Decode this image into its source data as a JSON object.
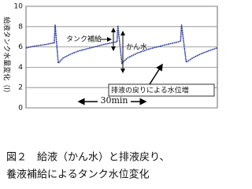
{
  "chart_data": {
    "type": "line",
    "y_label": "給液タンク水量変化（l）",
    "x": [
      0,
      4.2,
      7.8,
      11.3,
      12.7,
      13.1,
      14.5,
      16.6,
      20.1,
      23.6,
      28.9,
      34.2,
      39.5,
      40.9,
      41.3,
      43.1,
      45.5,
      50.1,
      55.4,
      62.5,
      68.5,
      69.5,
      69.9,
      72.0,
      74.8,
      78.4,
      81.9,
      85.8
    ],
    "series": [
      {
        "name": null,
        "color": "#2b3a9e",
        "values": [
          5.9,
          6.1,
          6.2,
          6.35,
          6.4,
          8.2,
          4.4,
          4.9,
          5.3,
          5.6,
          5.9,
          6.2,
          6.45,
          6.5,
          8.1,
          4.4,
          4.9,
          5.4,
          5.8,
          6.2,
          6.5,
          6.6,
          8.2,
          4.5,
          4.9,
          5.3,
          5.6,
          5.9
        ]
      }
    ],
    "xlim": [
      0,
      86
    ],
    "ylim": [
      0,
      10
    ],
    "yticks": [
      0,
      2,
      4,
      6,
      8,
      10
    ],
    "grid": true,
    "annotations": [
      "タンク補給",
      "かん水",
      "排液の戻りによる水位増",
      "30min"
    ],
    "caption": [
      "図２　給液（かん水）と排液戻り、",
      "養液補給によるタンク水位変化"
    ]
  }
}
